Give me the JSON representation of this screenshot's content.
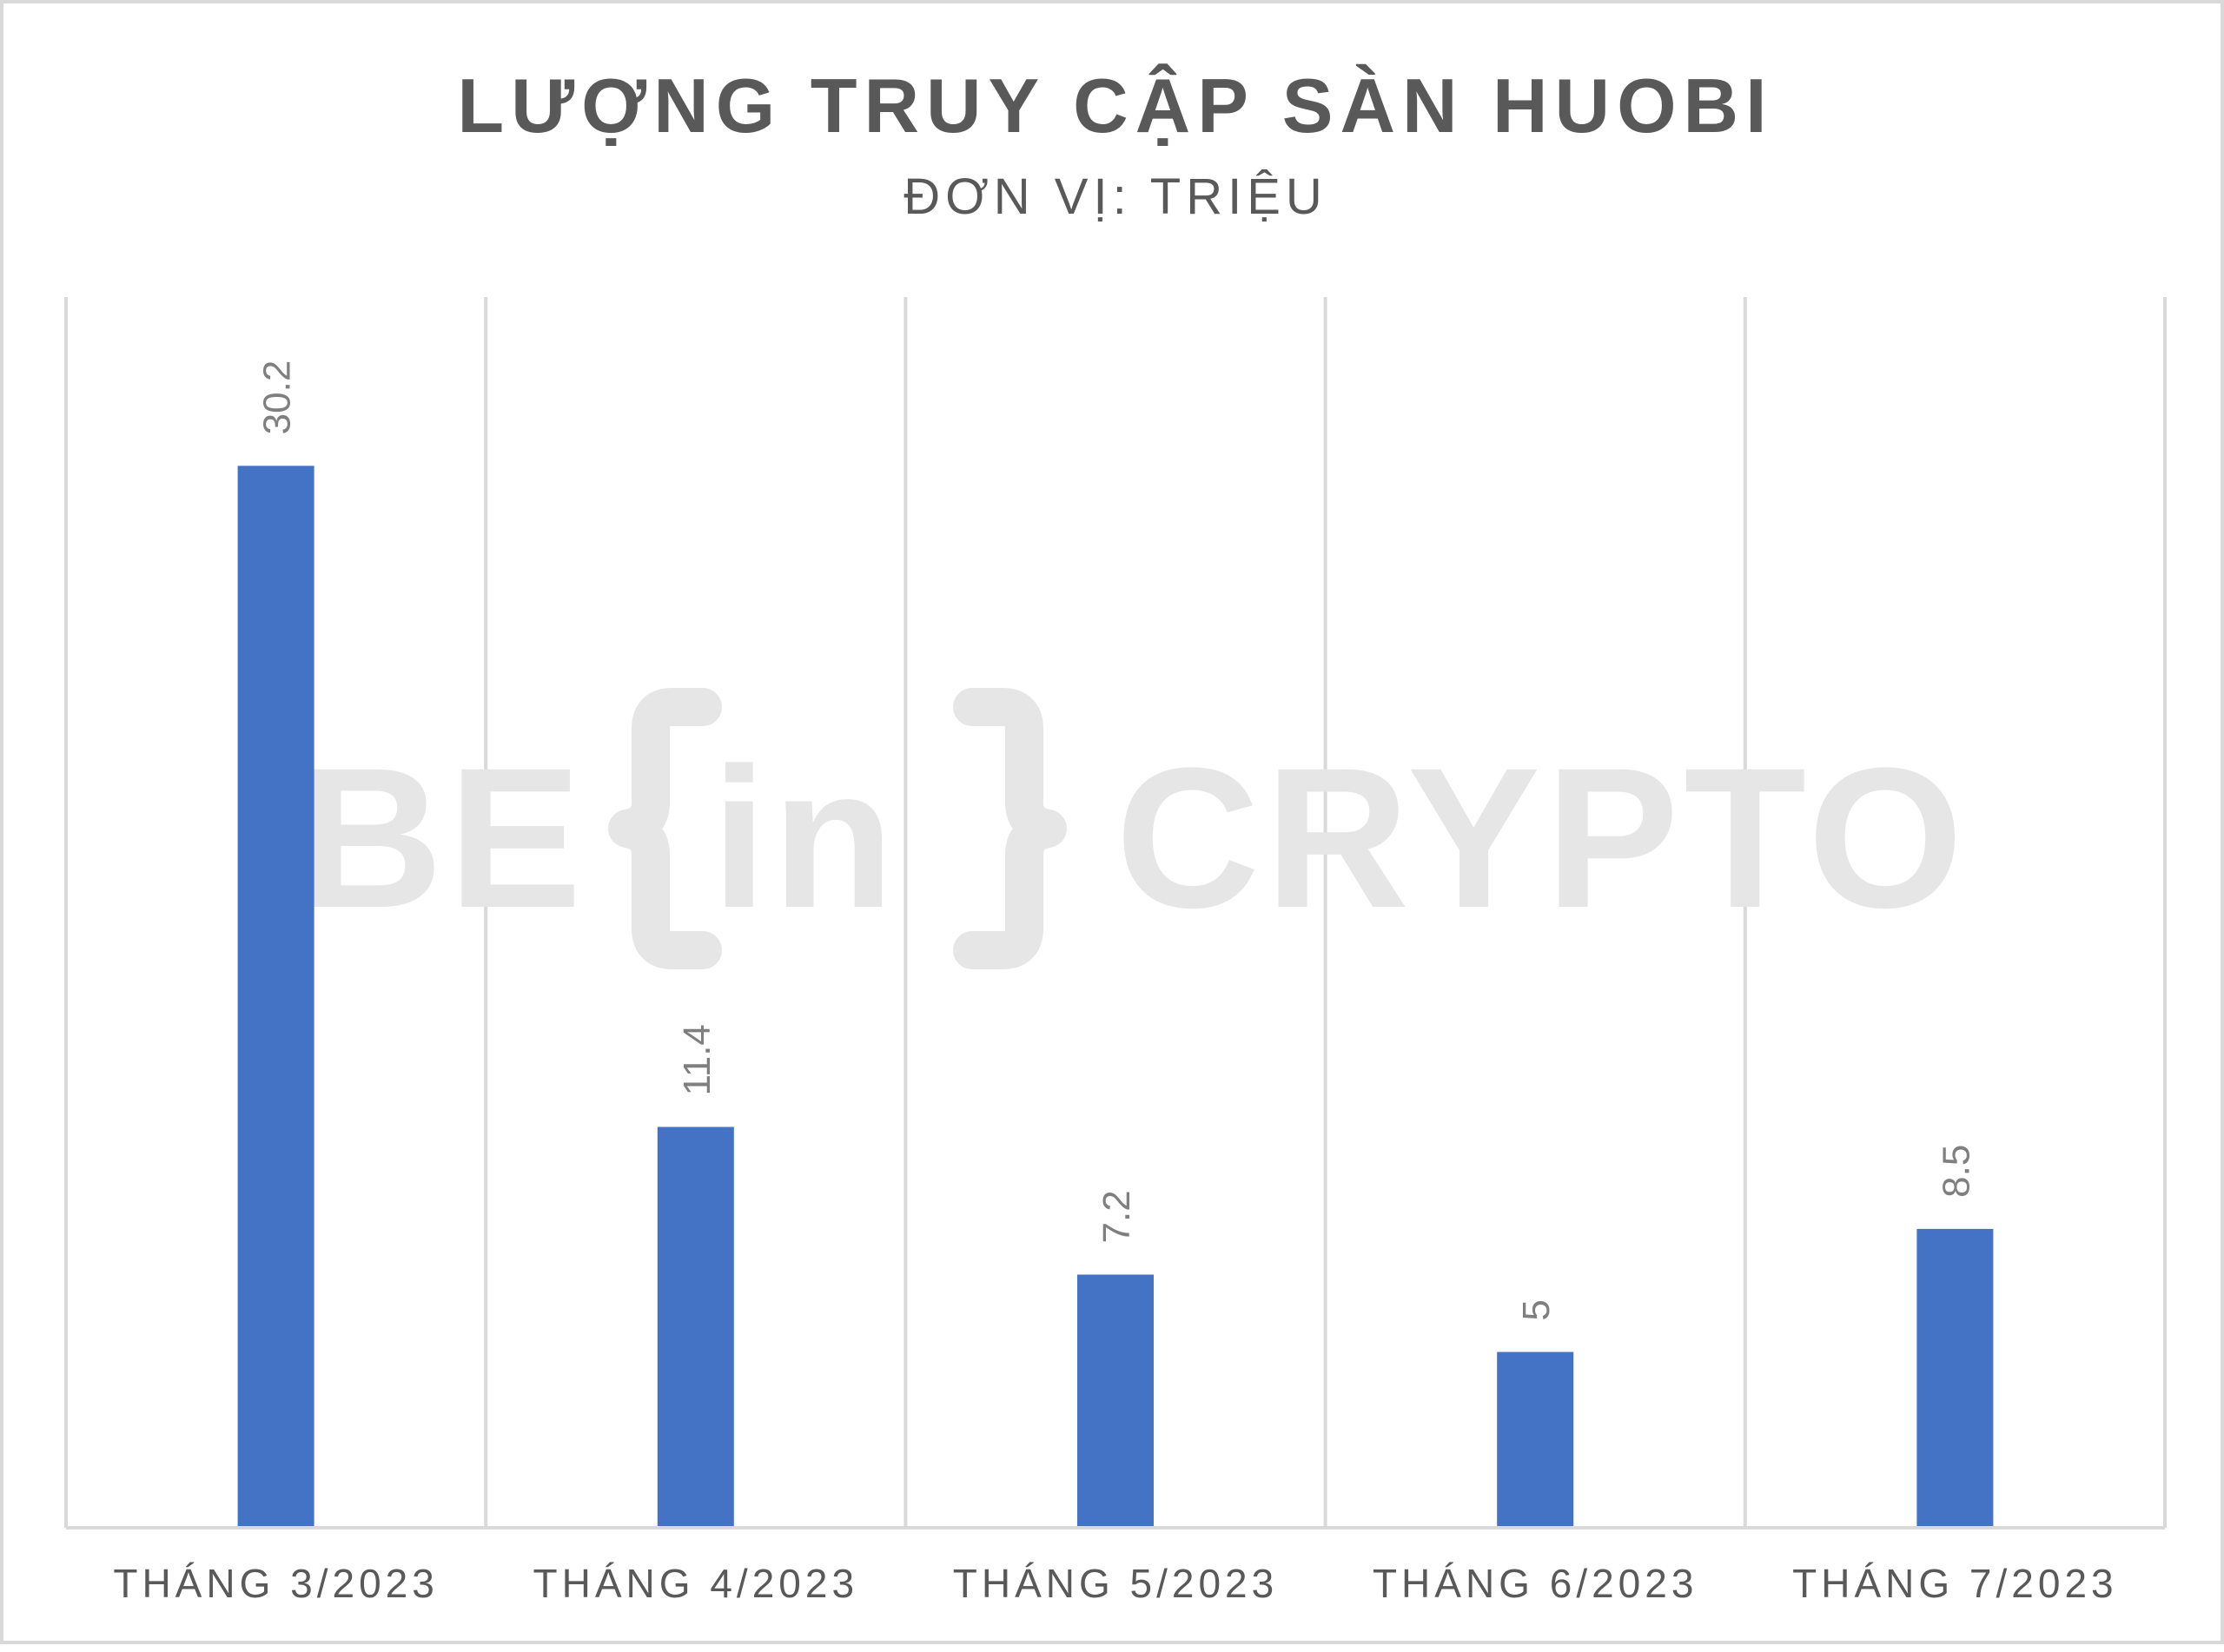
{
  "watermark": {
    "text": "BE[in]CRYPTO",
    "color": "#e6e6e6"
  },
  "chart_data": {
    "type": "bar",
    "title": "LƯỢNG TRUY CẬP SÀN HUOBI",
    "subtitle": "ĐƠN VỊ: TRIỆU",
    "xlabel": "",
    "ylabel": "",
    "categories": [
      "THÁNG 3/2023",
      "THÁNG 4/2023",
      "THÁNG 5/2023",
      "THÁNG 6/2023",
      "THÁNG 7/2023"
    ],
    "series": [
      {
        "values": [
          30.2,
          11.4,
          7.2,
          5,
          8.5
        ],
        "labels": [
          "30.2",
          "11.4",
          "7.2",
          "5",
          "8.5"
        ],
        "color": "#4472c4"
      }
    ],
    "ylim": [
      0,
      35
    ],
    "grid": "vertical-category-separators",
    "legend": "none",
    "data_labels": "above-bar-rotated"
  },
  "colors": {
    "title": "#595959",
    "subtitle": "#595959",
    "tick": "#595959",
    "data_label": "#7f7f7f",
    "grid": "#d9d9d9",
    "axis": "#d9d9d9",
    "border": "#d9d9d9"
  }
}
